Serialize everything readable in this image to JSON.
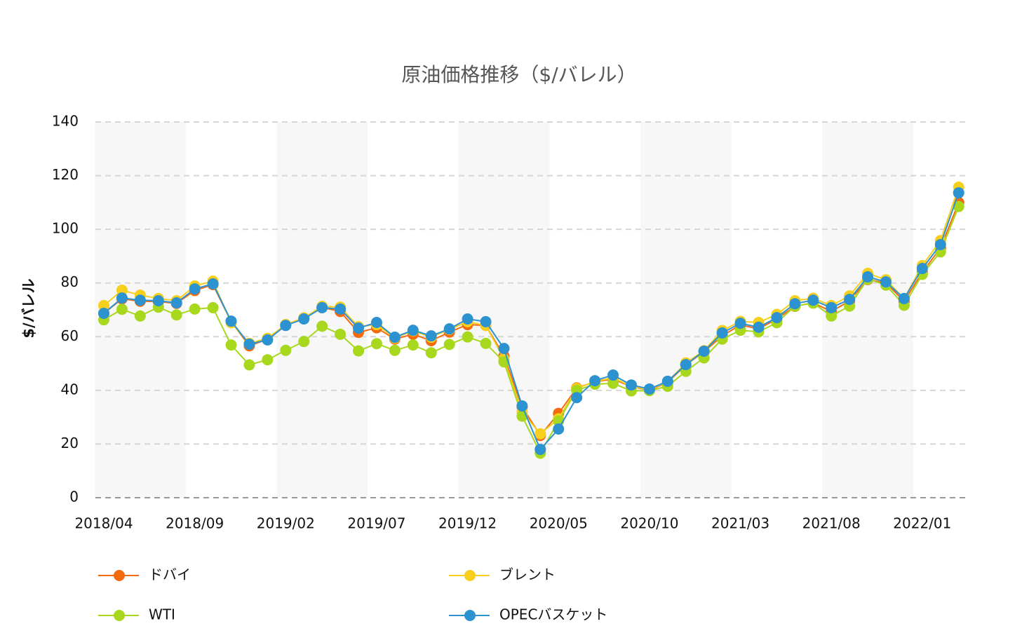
{
  "chart_data": {
    "type": "line",
    "title": "原油価格推移（$/バレル）",
    "y_label": "$/バレル",
    "categories": [
      "2018/04",
      null,
      null,
      null,
      null,
      "2018/09",
      null,
      null,
      null,
      null,
      "2019/02",
      null,
      null,
      null,
      null,
      "2019/07",
      null,
      null,
      null,
      null,
      "2019/12",
      null,
      null,
      null,
      null,
      "2020/05",
      null,
      null,
      null,
      null,
      "2020/10",
      null,
      null,
      null,
      null,
      "2021/03",
      null,
      null,
      null,
      null,
      "2021/08",
      null,
      null,
      null,
      null,
      "2022/01",
      null,
      null
    ],
    "ylim": [
      0,
      140
    ],
    "yticks": [
      0,
      20,
      40,
      60,
      80,
      100,
      120,
      140
    ],
    "grid": true,
    "legend": "bottom",
    "series": [
      {
        "name": "ドバイ",
        "color": "#f46a0f",
        "values": [
          68.7,
          74.1,
          73.2,
          73.1,
          72.4,
          77.2,
          79.4,
          65.6,
          56.6,
          59.0,
          64.3,
          66.9,
          70.9,
          69.4,
          61.6,
          63.3,
          59.1,
          60.9,
          58.5,
          61.7,
          64.5,
          64.2,
          52.8,
          33.8,
          23.2,
          31.4,
          40.9,
          43.2,
          44.2,
          41.4,
          40.0,
          43.0,
          49.5,
          54.4,
          60.3,
          64.4,
          62.9,
          66.6,
          71.3,
          72.6,
          69.4,
          73.3,
          81.3,
          80.0,
          73.2,
          84.0,
          93.0,
          110.0
        ]
      },
      {
        "name": "ブレント",
        "color": "#f7cf1d",
        "values": [
          71.6,
          77.3,
          75.5,
          74.2,
          73.4,
          78.9,
          80.7,
          65.2,
          57.5,
          59.4,
          64.5,
          67.0,
          71.3,
          71.0,
          63.7,
          64.5,
          59.5,
          62.2,
          59.8,
          62.7,
          65.6,
          64.2,
          51.7,
          32.0,
          23.8,
          29.4,
          40.7,
          43.3,
          44.7,
          41.5,
          40.2,
          43.2,
          50.2,
          54.8,
          62.3,
          65.7,
          65.3,
          68.3,
          73.4,
          74.3,
          71.6,
          75.2,
          83.6,
          81.2,
          74.2,
          86.5,
          95.8,
          115.7
        ]
      },
      {
        "name": "WTI",
        "color": "#a8d81e",
        "values": [
          66.3,
          70.2,
          67.7,
          71.0,
          68.1,
          70.3,
          70.8,
          56.9,
          49.5,
          51.4,
          54.9,
          58.2,
          63.9,
          60.9,
          54.7,
          57.4,
          54.9,
          56.9,
          54.0,
          57.1,
          59.9,
          57.5,
          50.6,
          30.4,
          16.6,
          28.6,
          40.0,
          42.3,
          42.6,
          39.8,
          39.9,
          41.5,
          47.1,
          52.1,
          59.1,
          62.4,
          61.8,
          65.2,
          71.4,
          72.5,
          67.7,
          71.4,
          81.5,
          79.2,
          71.7,
          83.2,
          91.6,
          108.5
        ]
      },
      {
        "name": "OPECバスケット",
        "color": "#2d92d0",
        "values": [
          68.7,
          74.4,
          73.6,
          73.4,
          72.6,
          77.8,
          79.7,
          65.8,
          57.2,
          58.8,
          64.2,
          66.6,
          70.8,
          70.3,
          63.2,
          65.3,
          59.8,
          62.4,
          60.3,
          62.9,
          66.6,
          65.6,
          55.6,
          34.2,
          18.0,
          25.6,
          37.3,
          43.6,
          45.7,
          42.0,
          40.5,
          43.4,
          49.6,
          54.6,
          61.4,
          65.0,
          63.5,
          67.1,
          72.3,
          73.6,
          70.8,
          73.9,
          82.3,
          80.4,
          74.2,
          85.4,
          94.3,
          113.6
        ]
      }
    ]
  }
}
